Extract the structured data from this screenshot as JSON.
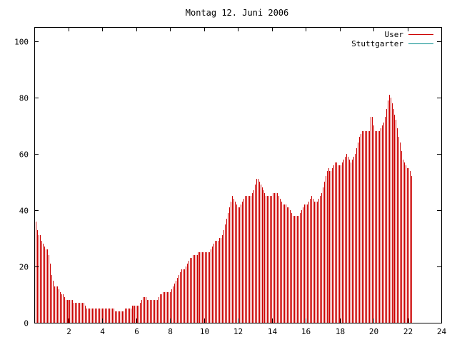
{
  "chart_data": {
    "type": "bar",
    "title": "Montag 12. Juni 2006",
    "xlabel": "",
    "ylabel": "",
    "xlim": [
      0,
      24
    ],
    "ylim": [
      0,
      105
    ],
    "x_ticks": [
      2,
      4,
      6,
      8,
      10,
      12,
      14,
      16,
      18,
      20,
      22,
      24
    ],
    "y_ticks": [
      0,
      20,
      40,
      60,
      80,
      100
    ],
    "grid": false,
    "legend_position": "top-right",
    "colors": {
      "User": "#cc0000",
      "Stuttgarter": "#008b8b",
      "frame": "#000000"
    },
    "legend": [
      {
        "label": "User",
        "color": "#cc0000"
      },
      {
        "label": "Stuttgarter",
        "color": "#008b8b"
      }
    ],
    "series": [
      {
        "name": "User",
        "color": "#cc0000",
        "x_start": 0,
        "x_step": 0.0833,
        "values": [
          37,
          36,
          33,
          31,
          31,
          29,
          28,
          27,
          26,
          26,
          24,
          21,
          17,
          15,
          13,
          13,
          13,
          12,
          11,
          10,
          10,
          9,
          8,
          8,
          8,
          8,
          8,
          8,
          7,
          7,
          7,
          7,
          7,
          7,
          7,
          7,
          6,
          5,
          5,
          5,
          5,
          5,
          5,
          5,
          5,
          5,
          5,
          5,
          5,
          5,
          5,
          5,
          5,
          5,
          5,
          5,
          5,
          4,
          4,
          4,
          4,
          4,
          4,
          4,
          5,
          5,
          5,
          5,
          5,
          6,
          6,
          6,
          6,
          6,
          6,
          7,
          8,
          9,
          9,
          9,
          8,
          8,
          8,
          8,
          8,
          8,
          8,
          8,
          9,
          10,
          10,
          11,
          11,
          11,
          11,
          11,
          11,
          12,
          13,
          14,
          15,
          16,
          17,
          18,
          19,
          19,
          19,
          20,
          21,
          22,
          23,
          23,
          24,
          24,
          24,
          24,
          25,
          25,
          25,
          25,
          25,
          25,
          25,
          25,
          25,
          26,
          27,
          28,
          29,
          29,
          29,
          30,
          30,
          31,
          33,
          35,
          37,
          39,
          41,
          43,
          45,
          44,
          43,
          42,
          41,
          41,
          42,
          43,
          44,
          45,
          45,
          45,
          45,
          45,
          46,
          47,
          49,
          51,
          51,
          50,
          49,
          48,
          47,
          46,
          45,
          45,
          45,
          45,
          45,
          46,
          46,
          46,
          46,
          45,
          44,
          43,
          42,
          42,
          42,
          41,
          41,
          40,
          39,
          38,
          38,
          38,
          38,
          38,
          39,
          40,
          41,
          42,
          42,
          42,
          43,
          44,
          45,
          44,
          43,
          43,
          43,
          44,
          45,
          46,
          48,
          50,
          52,
          54,
          55,
          54,
          54,
          55,
          56,
          57,
          57,
          56,
          56,
          56,
          57,
          58,
          59,
          60,
          59,
          58,
          57,
          58,
          59,
          60,
          62,
          64,
          66,
          67,
          68,
          68,
          68,
          68,
          68,
          68,
          73,
          73,
          70,
          68,
          68,
          68,
          68,
          69,
          70,
          71,
          73,
          76,
          79,
          81,
          80,
          78,
          76,
          74,
          72,
          69,
          66,
          64,
          61,
          58,
          57,
          56,
          55,
          55,
          54,
          52
        ]
      },
      {
        "name": "Stuttgarter",
        "color": "#008b8b",
        "x_start": 0,
        "x_step": 0.0833,
        "values": [
          0,
          0,
          0,
          0,
          0,
          0,
          0,
          0,
          0,
          0,
          0,
          0,
          0,
          0,
          0,
          0,
          0,
          0,
          0,
          0,
          0,
          0,
          0,
          0,
          0,
          0,
          0,
          0,
          0,
          0,
          0,
          0,
          0,
          0,
          0,
          0,
          0,
          0,
          0,
          0,
          0,
          0,
          0,
          0,
          0,
          0,
          0,
          0,
          0,
          0,
          0,
          0,
          0,
          0,
          0,
          0,
          0,
          0,
          0,
          0,
          0,
          0,
          0,
          0,
          0,
          0,
          0,
          0,
          0,
          0,
          0,
          0,
          0,
          0,
          0,
          0,
          0,
          0,
          0,
          0,
          0,
          0,
          0,
          0,
          0,
          0,
          0,
          0,
          0,
          0,
          0,
          0,
          0,
          0,
          0,
          0,
          0,
          0,
          0,
          0,
          0,
          0,
          0,
          0,
          0,
          0,
          0,
          0,
          0,
          0,
          0,
          0,
          0,
          0,
          0,
          0,
          0,
          0,
          0,
          0,
          0,
          0,
          0,
          0,
          0,
          0,
          0,
          0,
          0,
          0,
          0,
          0,
          0,
          0,
          0,
          0,
          0,
          0,
          0,
          0,
          0,
          0,
          0,
          0,
          0,
          0,
          0,
          0,
          0,
          0,
          0,
          0,
          0,
          0,
          0,
          0,
          0,
          0,
          0,
          0,
          0,
          0,
          0,
          0,
          0,
          0,
          0,
          0,
          0,
          0,
          0,
          0,
          0,
          0,
          0,
          0,
          0,
          0,
          0,
          0,
          0,
          0,
          0,
          0,
          0,
          0,
          0,
          0,
          0,
          0,
          0,
          0,
          0,
          0,
          0,
          0,
          0,
          0,
          0,
          0,
          0,
          0,
          0,
          0,
          0,
          0,
          0,
          0,
          0,
          0,
          0,
          0,
          0,
          0,
          0,
          0,
          0,
          0,
          0,
          0,
          0,
          0,
          0,
          0,
          0,
          0,
          0,
          0,
          0,
          0,
          0,
          0,
          0,
          0,
          0,
          0,
          0,
          0,
          0,
          0,
          0,
          0,
          0,
          0,
          0,
          0,
          0,
          0,
          0,
          0,
          0,
          0,
          0,
          0,
          0,
          0,
          0,
          0,
          0,
          0,
          0,
          0,
          0,
          0,
          0,
          0,
          0,
          0,
          0,
          0,
          0,
          0,
          0,
          0,
          0,
          0,
          0,
          0,
          0,
          0,
          0,
          0,
          0,
          0,
          0,
          0,
          0,
          0,
          1,
          1,
          1,
          1,
          1,
          1,
          1,
          1,
          1,
          1,
          1,
          1,
          1,
          1,
          1,
          1,
          1,
          1,
          1,
          1,
          1,
          1,
          1,
          1
        ]
      }
    ]
  }
}
